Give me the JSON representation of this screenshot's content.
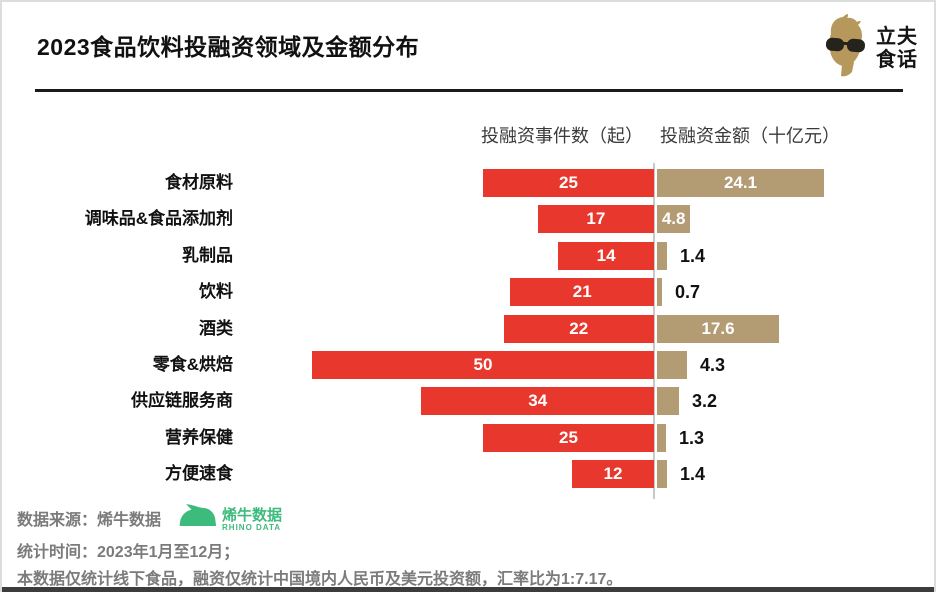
{
  "header": {
    "title": "2023食品饮料投融资领域及金额分布",
    "brand_line1": "立夫",
    "brand_line2": "食话"
  },
  "chart_data": {
    "type": "bar",
    "orientation": "horizontal-diverging",
    "categories": [
      "食材原料",
      "调味品&食品添加剂",
      "乳制品",
      "饮料",
      "酒类",
      "零食&烘焙",
      "供应链服务商",
      "营养保健",
      "方便速食"
    ],
    "series": [
      {
        "name": "投融资事件数（起）",
        "values": [
          25,
          17,
          14,
          21,
          22,
          50,
          34,
          25,
          12
        ],
        "color": "#e8382d",
        "side": "left",
        "max": 50
      },
      {
        "name": "投融资金额（十亿元）",
        "values": [
          24.1,
          4.8,
          1.4,
          0.7,
          17.6,
          4.3,
          3.2,
          1.3,
          1.4
        ],
        "color": "#b39b74",
        "side": "right",
        "max": 24.1,
        "label_inside": [
          true,
          true,
          false,
          false,
          true,
          false,
          false,
          false,
          false
        ]
      }
    ],
    "left_header": "投融资事件数（起）",
    "right_header": "投融资金额（十亿元）",
    "legend_position": "top",
    "grid": false
  },
  "footer": {
    "source_line": "数据来源：烯牛数据",
    "source_logo_name": "烯牛数据",
    "source_logo_sub": "RHINO DATA",
    "time_line": "统计时间：2023年1月至12月；",
    "note_line": "本数据仅统计线下食品，融资仅统计中国境内人民币及美元投资额，汇率比为1:7.17。"
  },
  "colors": {
    "events_bar": "#e8382d",
    "amount_bar": "#b39b74",
    "divider": "#c9c9c9",
    "footer_text": "#7b7b7b",
    "rhino_green": "#3dbb7c",
    "brand_tan": "#b7985c"
  }
}
